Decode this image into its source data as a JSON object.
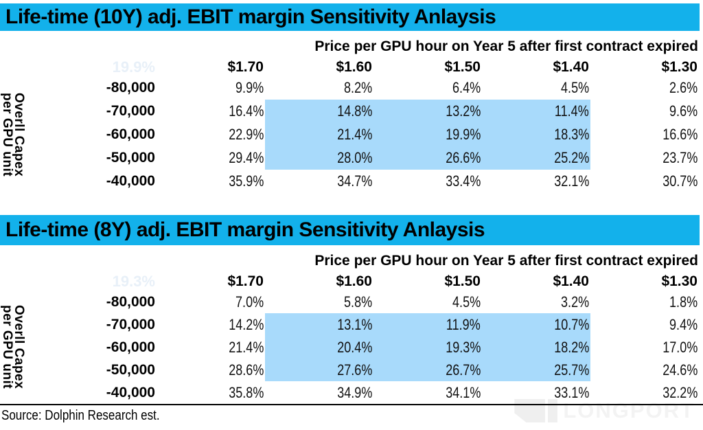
{
  "colors": {
    "accent": "#13b1eb",
    "highlight": "#a8dafb",
    "corner_value_text": "#e8f0f8",
    "watermark": "#efefef"
  },
  "chart_data": [
    {
      "type": "table",
      "title": "Life-time (10Y) adj. EBIT margin Sensitivity Anlaysis",
      "subtitle": "Price per GPU hour on Year 5 after first contract expired",
      "corner_value": "19.9%",
      "ylabel": "Overll Capex per GPU unit",
      "ylabel_lines": [
        "Overll Capex",
        "per GPU unit"
      ],
      "columns": [
        "$1.70",
        "$1.60",
        "$1.50",
        "$1.40",
        "$1.30"
      ],
      "row_labels": [
        "-80,000",
        "-70,000",
        "-60,000",
        "-50,000",
        "-40,000"
      ],
      "rows": [
        [
          "9.9%",
          "8.2%",
          "6.4%",
          "4.5%",
          "2.6%"
        ],
        [
          "16.4%",
          "14.8%",
          "13.2%",
          "11.4%",
          "9.6%"
        ],
        [
          "22.9%",
          "21.4%",
          "19.9%",
          "18.3%",
          "16.6%"
        ],
        [
          "29.4%",
          "28.0%",
          "26.6%",
          "25.2%",
          "23.7%"
        ],
        [
          "35.9%",
          "34.7%",
          "33.4%",
          "32.1%",
          "30.7%"
        ]
      ],
      "highlight_region": {
        "row_indices": [
          1,
          2,
          3
        ],
        "col_indices": [
          1,
          2,
          3
        ]
      }
    },
    {
      "type": "table",
      "title": "Life-time (8Y) adj. EBIT margin Sensitivity Anlaysis",
      "subtitle": "Price per GPU hour on Year 5 after first contract expired",
      "corner_value": "19.3%",
      "ylabel": "Overll Capex per GPU unit",
      "ylabel_lines": [
        "Overll Capex",
        "per GPU unit"
      ],
      "columns": [
        "$1.70",
        "$1.60",
        "$1.50",
        "$1.40",
        "$1.30"
      ],
      "row_labels": [
        "-80,000",
        "-70,000",
        "-60,000",
        "-50,000",
        "-40,000"
      ],
      "rows": [
        [
          "7.0%",
          "5.8%",
          "4.5%",
          "3.2%",
          "1.8%"
        ],
        [
          "14.2%",
          "13.1%",
          "11.9%",
          "10.7%",
          "9.4%"
        ],
        [
          "21.4%",
          "20.4%",
          "19.3%",
          "18.2%",
          "17.0%"
        ],
        [
          "28.6%",
          "27.6%",
          "26.7%",
          "25.7%",
          "24.6%"
        ],
        [
          "35.8%",
          "34.9%",
          "34.1%",
          "33.1%",
          "32.2%"
        ]
      ],
      "highlight_region": {
        "row_indices": [
          1,
          2,
          3
        ],
        "col_indices": [
          1,
          2,
          3
        ]
      }
    }
  ],
  "footer": {
    "source": "Source: Dolphin Research est.",
    "watermark": "LONGPORT"
  }
}
